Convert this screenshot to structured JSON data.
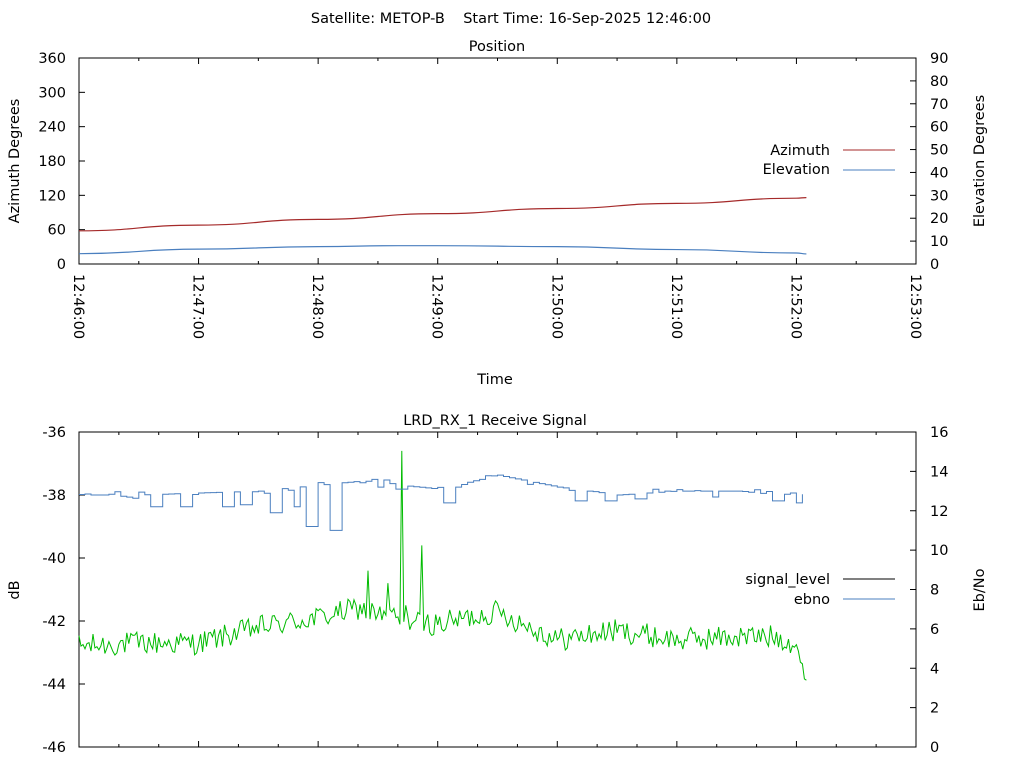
{
  "header": {
    "title": "Satellite: METOP-B    Start Time: 16-Sep-2025 12:46:00"
  },
  "colors": {
    "azimuth": "#a52a2a",
    "elevation": "#4a7fbf",
    "signal_level": "#00bb00",
    "ebno": "#4a7fbf",
    "axis": "#000000"
  },
  "chart_data": [
    {
      "type": "line",
      "title": "Position",
      "xlabel": "Time",
      "ylabel": "Azimuth Degrees",
      "y2label": "Elevation Degrees",
      "xlim": [
        "12:46:00",
        "12:53:00"
      ],
      "ylim": [
        0,
        360
      ],
      "y2lim": [
        0,
        90
      ],
      "x_ticks": [
        "12:46:00",
        "12:47:00",
        "12:48:00",
        "12:49:00",
        "12:50:00",
        "12:51:00",
        "12:52:00",
        "12:53:00"
      ],
      "y_ticks": [
        0,
        60,
        120,
        180,
        240,
        300,
        360
      ],
      "y2_ticks": [
        0,
        10,
        20,
        30,
        40,
        50,
        60,
        70,
        80,
        90
      ],
      "legend": "right",
      "series": [
        {
          "name": "Azimuth",
          "axis": "y",
          "x": [
            "12:46:00",
            "12:47:00",
            "12:48:00",
            "12:49:00",
            "12:50:00",
            "12:51:00",
            "12:52:00",
            "12:52:05"
          ],
          "values": [
            58,
            68,
            78,
            88,
            97,
            106,
            115,
            116
          ]
        },
        {
          "name": "Elevation",
          "axis": "y2",
          "x": [
            "12:46:00",
            "12:47:00",
            "12:48:00",
            "12:48:40",
            "12:49:00",
            "12:50:00",
            "12:51:00",
            "12:52:00",
            "12:52:05"
          ],
          "values": [
            4.5,
            6.5,
            7.6,
            8.0,
            8.0,
            7.6,
            6.3,
            4.8,
            4.4
          ]
        }
      ]
    },
    {
      "type": "line",
      "title": "LRD_RX_1 Receive Signal",
      "ylabel": "dB",
      "y2label": "Eb/No",
      "xlim": [
        "12:46:00",
        "12:53:00"
      ],
      "ylim": [
        -46,
        -36
      ],
      "y2lim": [
        0,
        16
      ],
      "y_ticks": [
        -46,
        -44,
        -42,
        -40,
        -38,
        -36
      ],
      "y2_ticks": [
        0,
        2,
        4,
        6,
        8,
        10,
        12,
        14,
        16
      ],
      "legend": "right",
      "series": [
        {
          "name": "signal_level",
          "axis": "y",
          "values": []
        },
        {
          "name": "ebno",
          "axis": "y2",
          "values": []
        }
      ],
      "traces": {
        "green": {
          "x": [
            "12:46:00",
            "12:46:30",
            "12:47:00",
            "12:47:30",
            "12:48:00",
            "12:48:20",
            "12:48:30",
            "12:48:40",
            "12:49:00",
            "12:49:30",
            "12:50:00",
            "12:50:30",
            "12:51:00",
            "12:51:30",
            "12:51:50",
            "12:52:00",
            "12:52:05"
          ],
          "values": [
            -42.8,
            -42.7,
            -42.7,
            -42.2,
            -41.9,
            -41.6,
            -41.8,
            -42.0,
            -42.1,
            -41.7,
            -42.6,
            -42.3,
            -42.6,
            -42.5,
            -42.5,
            -42.7,
            -44.2
          ]
        },
        "blue": {
          "x": [
            "12:46:00",
            "12:46:30",
            "12:47:00",
            "12:47:30",
            "12:48:00",
            "12:48:20",
            "12:48:30",
            "12:48:40",
            "12:49:00",
            "12:49:30",
            "12:50:00",
            "12:50:30",
            "12:51:00",
            "12:51:30",
            "12:51:50",
            "12:52:00",
            "12:52:05"
          ],
          "values": [
            12.8,
            12.8,
            12.9,
            13.0,
            13.3,
            13.5,
            13.5,
            13.3,
            13.1,
            13.8,
            13.2,
            12.8,
            13.0,
            13.0,
            12.8,
            12.9,
            12.8
          ]
        }
      }
    }
  ]
}
